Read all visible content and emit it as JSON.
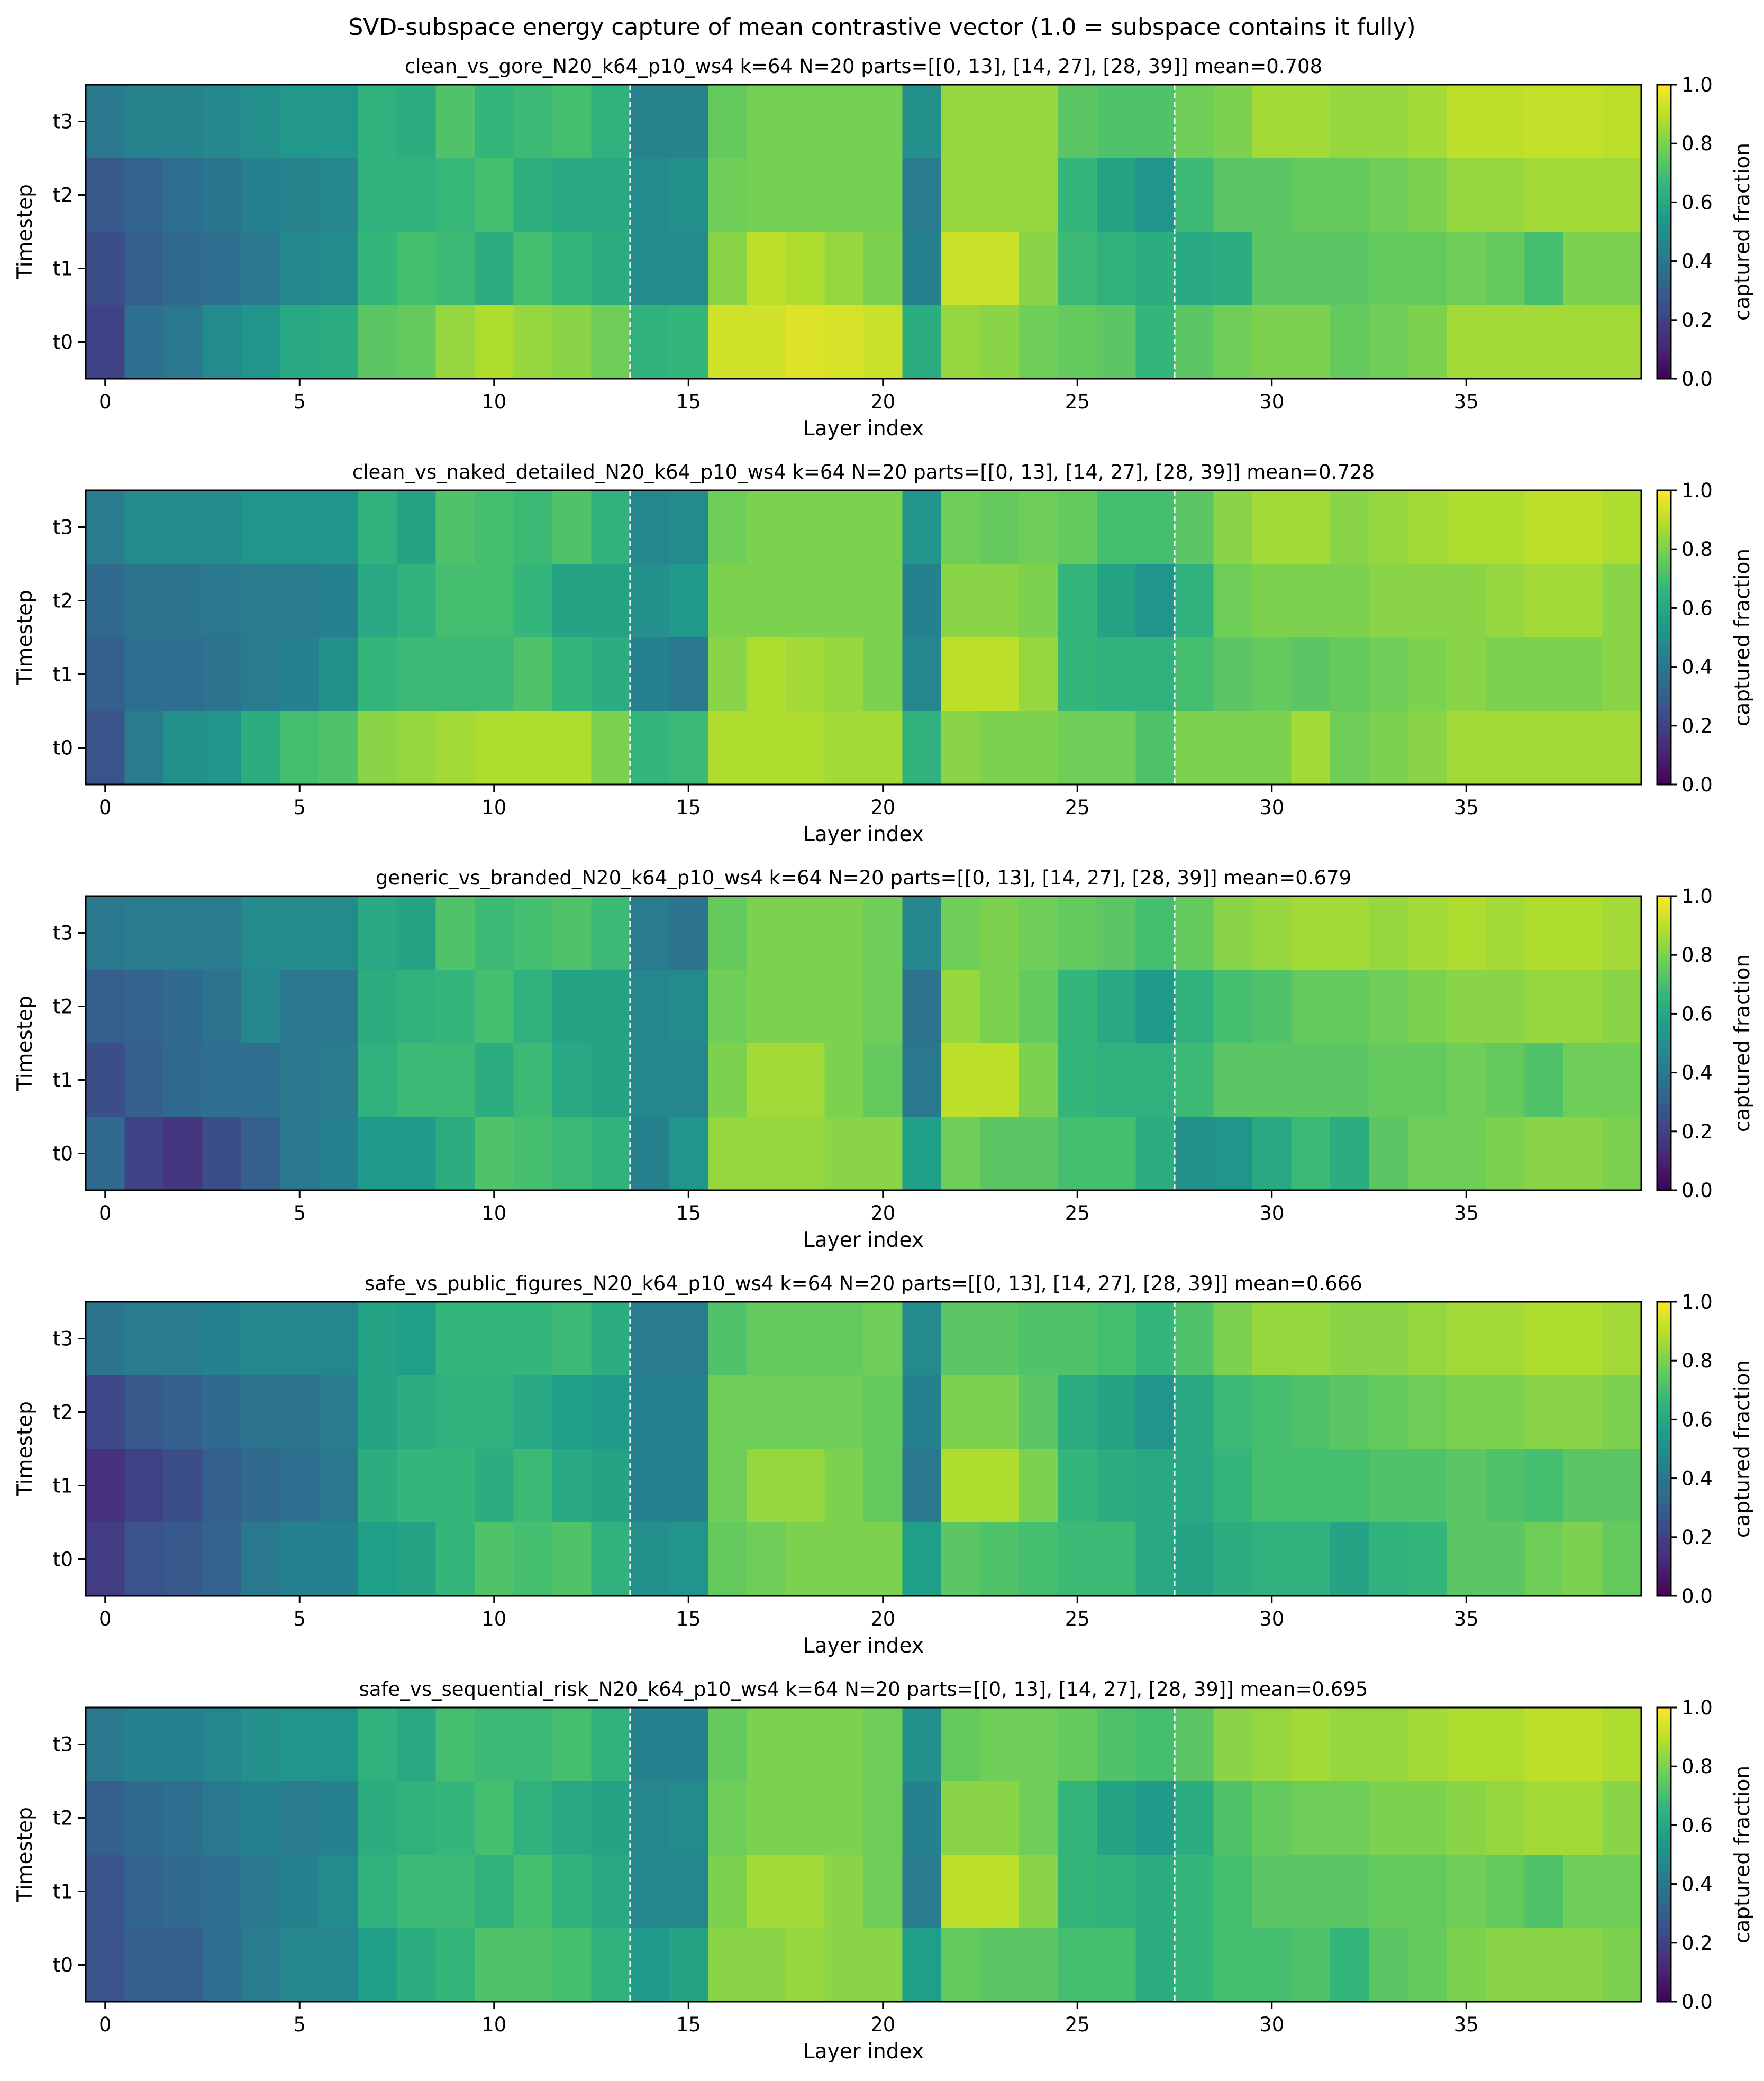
{
  "figure": {
    "suptitle": "SVD-subspace energy capture of mean contrastive vector  (1.0 = subspace contains it fully)"
  },
  "shared_axes": {
    "xlabel": "Layer index",
    "ylabel": "Timestep",
    "x_ticks": [
      0,
      5,
      10,
      15,
      20,
      25,
      30,
      35
    ],
    "y_labels_top_to_bottom": [
      "t3",
      "t2",
      "t1",
      "t0"
    ],
    "colorbar_label": "captured fraction",
    "colorbar_ticks": [
      "0.0",
      "0.2",
      "0.4",
      "0.6",
      "0.8",
      "1.0"
    ],
    "colormap": "viridis",
    "divider_after_layers": [
      13.5,
      27.5
    ],
    "divider_color": "#ffffff"
  },
  "chart_data": [
    {
      "type": "heatmap",
      "title": "clean_vs_gore_N20_k64_p10_ws4   k=64  N=20  parts=[[0, 13], [14, 27], [28, 39]]  mean=0.708",
      "xlabel": "Layer index",
      "ylabel": "Timestep",
      "x": [
        0,
        1,
        2,
        3,
        4,
        5,
        6,
        7,
        8,
        9,
        10,
        11,
        12,
        13,
        14,
        15,
        16,
        17,
        18,
        19,
        20,
        21,
        22,
        23,
        24,
        25,
        26,
        27,
        28,
        29,
        30,
        31,
        32,
        33,
        34,
        35,
        36,
        37,
        38,
        39
      ],
      "y": [
        "t3",
        "t2",
        "t1",
        "t0"
      ],
      "zlim": [
        0,
        1
      ],
      "values": [
        [
          0.4,
          0.45,
          0.45,
          0.47,
          0.5,
          0.53,
          0.53,
          0.64,
          0.62,
          0.72,
          0.66,
          0.68,
          0.7,
          0.64,
          0.45,
          0.45,
          0.76,
          0.79,
          0.79,
          0.79,
          0.79,
          0.5,
          0.84,
          0.84,
          0.84,
          0.74,
          0.72,
          0.72,
          0.78,
          0.8,
          0.86,
          0.86,
          0.84,
          0.84,
          0.86,
          0.9,
          0.9,
          0.91,
          0.91,
          0.9
        ],
        [
          0.28,
          0.32,
          0.36,
          0.39,
          0.44,
          0.45,
          0.46,
          0.64,
          0.64,
          0.67,
          0.7,
          0.63,
          0.6,
          0.6,
          0.48,
          0.5,
          0.78,
          0.79,
          0.79,
          0.79,
          0.79,
          0.42,
          0.84,
          0.84,
          0.84,
          0.66,
          0.58,
          0.52,
          0.68,
          0.74,
          0.74,
          0.76,
          0.76,
          0.78,
          0.8,
          0.84,
          0.84,
          0.86,
          0.86,
          0.86
        ],
        [
          0.24,
          0.3,
          0.34,
          0.36,
          0.4,
          0.47,
          0.48,
          0.66,
          0.7,
          0.68,
          0.62,
          0.7,
          0.66,
          0.62,
          0.48,
          0.48,
          0.82,
          0.9,
          0.88,
          0.84,
          0.8,
          0.44,
          0.92,
          0.92,
          0.82,
          0.68,
          0.64,
          0.62,
          0.6,
          0.62,
          0.74,
          0.74,
          0.74,
          0.76,
          0.76,
          0.78,
          0.76,
          0.7,
          0.8,
          0.8
        ],
        [
          0.2,
          0.36,
          0.4,
          0.48,
          0.52,
          0.6,
          0.62,
          0.74,
          0.76,
          0.84,
          0.88,
          0.84,
          0.82,
          0.78,
          0.64,
          0.66,
          0.93,
          0.93,
          0.95,
          0.94,
          0.92,
          0.62,
          0.84,
          0.82,
          0.78,
          0.76,
          0.74,
          0.66,
          0.74,
          0.78,
          0.8,
          0.8,
          0.76,
          0.78,
          0.8,
          0.86,
          0.86,
          0.86,
          0.86,
          0.86
        ]
      ]
    },
    {
      "type": "heatmap",
      "title": "clean_vs_naked_detailed_N20_k64_p10_ws4   k=64  N=20  parts=[[0, 13], [14, 27], [28, 39]]  mean=0.728",
      "xlabel": "Layer index",
      "ylabel": "Timestep",
      "x": [
        0,
        1,
        2,
        3,
        4,
        5,
        6,
        7,
        8,
        9,
        10,
        11,
        12,
        13,
        14,
        15,
        16,
        17,
        18,
        19,
        20,
        21,
        22,
        23,
        24,
        25,
        26,
        27,
        28,
        29,
        30,
        31,
        32,
        33,
        34,
        35,
        36,
        37,
        38,
        39
      ],
      "y": [
        "t3",
        "t2",
        "t1",
        "t0"
      ],
      "zlim": [
        0,
        1
      ],
      "values": [
        [
          0.42,
          0.48,
          0.48,
          0.48,
          0.52,
          0.52,
          0.52,
          0.64,
          0.58,
          0.72,
          0.7,
          0.68,
          0.72,
          0.64,
          0.46,
          0.48,
          0.78,
          0.8,
          0.8,
          0.8,
          0.8,
          0.52,
          0.78,
          0.76,
          0.78,
          0.76,
          0.7,
          0.7,
          0.74,
          0.82,
          0.86,
          0.86,
          0.82,
          0.84,
          0.86,
          0.88,
          0.88,
          0.9,
          0.9,
          0.88
        ],
        [
          0.34,
          0.38,
          0.38,
          0.4,
          0.42,
          0.42,
          0.44,
          0.6,
          0.64,
          0.7,
          0.7,
          0.66,
          0.58,
          0.58,
          0.5,
          0.54,
          0.8,
          0.8,
          0.8,
          0.8,
          0.8,
          0.44,
          0.82,
          0.82,
          0.8,
          0.66,
          0.58,
          0.52,
          0.64,
          0.78,
          0.8,
          0.8,
          0.8,
          0.82,
          0.82,
          0.82,
          0.84,
          0.86,
          0.86,
          0.82
        ],
        [
          0.3,
          0.36,
          0.36,
          0.38,
          0.42,
          0.44,
          0.5,
          0.66,
          0.68,
          0.68,
          0.68,
          0.72,
          0.66,
          0.62,
          0.44,
          0.4,
          0.82,
          0.88,
          0.86,
          0.84,
          0.8,
          0.46,
          0.9,
          0.9,
          0.84,
          0.66,
          0.64,
          0.64,
          0.7,
          0.74,
          0.76,
          0.74,
          0.76,
          0.78,
          0.8,
          0.82,
          0.8,
          0.8,
          0.8,
          0.82
        ],
        [
          0.26,
          0.42,
          0.5,
          0.52,
          0.62,
          0.7,
          0.72,
          0.82,
          0.84,
          0.86,
          0.88,
          0.88,
          0.88,
          0.8,
          0.66,
          0.68,
          0.88,
          0.88,
          0.88,
          0.86,
          0.86,
          0.64,
          0.82,
          0.8,
          0.8,
          0.78,
          0.78,
          0.72,
          0.8,
          0.8,
          0.8,
          0.86,
          0.78,
          0.8,
          0.82,
          0.86,
          0.86,
          0.86,
          0.86,
          0.86
        ]
      ]
    },
    {
      "type": "heatmap",
      "title": "generic_vs_branded_N20_k64_p10_ws4   k=64  N=20  parts=[[0, 13], [14, 27], [28, 39]]  mean=0.679",
      "xlabel": "Layer index",
      "ylabel": "Timestep",
      "x": [
        0,
        1,
        2,
        3,
        4,
        5,
        6,
        7,
        8,
        9,
        10,
        11,
        12,
        13,
        14,
        15,
        16,
        17,
        18,
        19,
        20,
        21,
        22,
        23,
        24,
        25,
        26,
        27,
        28,
        29,
        30,
        31,
        32,
        33,
        34,
        35,
        36,
        37,
        38,
        39
      ],
      "y": [
        "t3",
        "t2",
        "t1",
        "t0"
      ],
      "zlim": [
        0,
        1
      ],
      "values": [
        [
          0.4,
          0.42,
          0.42,
          0.42,
          0.48,
          0.48,
          0.48,
          0.6,
          0.58,
          0.72,
          0.68,
          0.7,
          0.72,
          0.68,
          0.42,
          0.38,
          0.76,
          0.8,
          0.8,
          0.8,
          0.78,
          0.46,
          0.78,
          0.8,
          0.78,
          0.76,
          0.74,
          0.7,
          0.76,
          0.82,
          0.84,
          0.86,
          0.86,
          0.84,
          0.86,
          0.88,
          0.86,
          0.88,
          0.88,
          0.86
        ],
        [
          0.3,
          0.32,
          0.34,
          0.38,
          0.46,
          0.4,
          0.4,
          0.62,
          0.64,
          0.66,
          0.7,
          0.64,
          0.58,
          0.58,
          0.46,
          0.48,
          0.78,
          0.8,
          0.8,
          0.8,
          0.78,
          0.38,
          0.84,
          0.8,
          0.76,
          0.66,
          0.6,
          0.54,
          0.64,
          0.7,
          0.72,
          0.76,
          0.76,
          0.78,
          0.8,
          0.82,
          0.82,
          0.84,
          0.84,
          0.82
        ],
        [
          0.24,
          0.3,
          0.34,
          0.36,
          0.36,
          0.4,
          0.42,
          0.64,
          0.68,
          0.68,
          0.62,
          0.68,
          0.6,
          0.58,
          0.46,
          0.46,
          0.8,
          0.86,
          0.86,
          0.8,
          0.76,
          0.4,
          0.9,
          0.9,
          0.8,
          0.66,
          0.64,
          0.64,
          0.68,
          0.74,
          0.74,
          0.74,
          0.74,
          0.76,
          0.76,
          0.78,
          0.76,
          0.72,
          0.78,
          0.78
        ],
        [
          0.34,
          0.2,
          0.16,
          0.24,
          0.3,
          0.4,
          0.44,
          0.54,
          0.54,
          0.62,
          0.72,
          0.7,
          0.68,
          0.64,
          0.44,
          0.52,
          0.84,
          0.84,
          0.84,
          0.82,
          0.82,
          0.56,
          0.78,
          0.74,
          0.74,
          0.7,
          0.7,
          0.62,
          0.5,
          0.52,
          0.6,
          0.68,
          0.62,
          0.74,
          0.78,
          0.78,
          0.8,
          0.82,
          0.82,
          0.8
        ]
      ]
    },
    {
      "type": "heatmap",
      "title": "safe_vs_public_figures_N20_k64_p10_ws4   k=64  N=20  parts=[[0, 13], [14, 27], [28, 39]]  mean=0.666",
      "xlabel": "Layer index",
      "ylabel": "Timestep",
      "x": [
        0,
        1,
        2,
        3,
        4,
        5,
        6,
        7,
        8,
        9,
        10,
        11,
        12,
        13,
        14,
        15,
        16,
        17,
        18,
        19,
        20,
        21,
        22,
        23,
        24,
        25,
        26,
        27,
        28,
        29,
        30,
        31,
        32,
        33,
        34,
        35,
        36,
        37,
        38,
        39
      ],
      "y": [
        "t3",
        "t2",
        "t1",
        "t0"
      ],
      "zlim": [
        0,
        1
      ],
      "values": [
        [
          0.38,
          0.42,
          0.42,
          0.44,
          0.46,
          0.46,
          0.46,
          0.58,
          0.56,
          0.66,
          0.66,
          0.66,
          0.68,
          0.62,
          0.42,
          0.42,
          0.72,
          0.76,
          0.76,
          0.76,
          0.78,
          0.48,
          0.74,
          0.74,
          0.72,
          0.72,
          0.7,
          0.66,
          0.72,
          0.8,
          0.84,
          0.84,
          0.82,
          0.82,
          0.84,
          0.86,
          0.86,
          0.88,
          0.88,
          0.86
        ],
        [
          0.22,
          0.28,
          0.3,
          0.34,
          0.38,
          0.38,
          0.42,
          0.58,
          0.62,
          0.64,
          0.64,
          0.6,
          0.56,
          0.54,
          0.44,
          0.44,
          0.78,
          0.78,
          0.78,
          0.78,
          0.76,
          0.44,
          0.8,
          0.8,
          0.74,
          0.62,
          0.58,
          0.52,
          0.6,
          0.68,
          0.7,
          0.72,
          0.74,
          0.76,
          0.78,
          0.8,
          0.8,
          0.82,
          0.82,
          0.8
        ],
        [
          0.14,
          0.2,
          0.24,
          0.3,
          0.34,
          0.36,
          0.4,
          0.62,
          0.66,
          0.66,
          0.62,
          0.68,
          0.6,
          0.58,
          0.44,
          0.44,
          0.78,
          0.84,
          0.84,
          0.8,
          0.76,
          0.4,
          0.88,
          0.88,
          0.8,
          0.66,
          0.62,
          0.6,
          0.6,
          0.66,
          0.7,
          0.7,
          0.7,
          0.72,
          0.72,
          0.74,
          0.72,
          0.7,
          0.74,
          0.74
        ],
        [
          0.18,
          0.26,
          0.28,
          0.32,
          0.4,
          0.44,
          0.44,
          0.56,
          0.58,
          0.66,
          0.72,
          0.7,
          0.72,
          0.64,
          0.5,
          0.52,
          0.76,
          0.78,
          0.8,
          0.8,
          0.8,
          0.56,
          0.74,
          0.72,
          0.7,
          0.68,
          0.68,
          0.6,
          0.58,
          0.62,
          0.64,
          0.64,
          0.58,
          0.64,
          0.66,
          0.74,
          0.74,
          0.78,
          0.8,
          0.76
        ]
      ]
    },
    {
      "type": "heatmap",
      "title": "safe_vs_sequential_risk_N20_k64_p10_ws4   k=64  N=20  parts=[[0, 13], [14, 27], [28, 39]]  mean=0.695",
      "xlabel": "Layer index",
      "ylabel": "Timestep",
      "x": [
        0,
        1,
        2,
        3,
        4,
        5,
        6,
        7,
        8,
        9,
        10,
        11,
        12,
        13,
        14,
        15,
        16,
        17,
        18,
        19,
        20,
        21,
        22,
        23,
        24,
        25,
        26,
        27,
        28,
        29,
        30,
        31,
        32,
        33,
        34,
        35,
        36,
        37,
        38,
        39
      ],
      "y": [
        "t3",
        "t2",
        "t1",
        "t0"
      ],
      "zlim": [
        0,
        1
      ],
      "values": [
        [
          0.4,
          0.44,
          0.44,
          0.46,
          0.5,
          0.52,
          0.52,
          0.64,
          0.6,
          0.7,
          0.68,
          0.68,
          0.7,
          0.64,
          0.44,
          0.44,
          0.76,
          0.8,
          0.8,
          0.8,
          0.78,
          0.5,
          0.76,
          0.78,
          0.78,
          0.76,
          0.72,
          0.7,
          0.74,
          0.82,
          0.84,
          0.86,
          0.84,
          0.84,
          0.86,
          0.88,
          0.88,
          0.9,
          0.9,
          0.88
        ],
        [
          0.3,
          0.34,
          0.36,
          0.4,
          0.44,
          0.42,
          0.44,
          0.62,
          0.64,
          0.66,
          0.7,
          0.64,
          0.6,
          0.58,
          0.46,
          0.48,
          0.78,
          0.8,
          0.8,
          0.8,
          0.78,
          0.44,
          0.82,
          0.82,
          0.78,
          0.66,
          0.58,
          0.54,
          0.62,
          0.72,
          0.76,
          0.78,
          0.78,
          0.8,
          0.8,
          0.82,
          0.84,
          0.86,
          0.86,
          0.82
        ],
        [
          0.26,
          0.32,
          0.34,
          0.36,
          0.4,
          0.44,
          0.48,
          0.64,
          0.68,
          0.68,
          0.64,
          0.7,
          0.64,
          0.6,
          0.46,
          0.46,
          0.8,
          0.86,
          0.86,
          0.82,
          0.78,
          0.42,
          0.9,
          0.9,
          0.82,
          0.66,
          0.64,
          0.62,
          0.66,
          0.7,
          0.74,
          0.74,
          0.74,
          0.76,
          0.76,
          0.78,
          0.76,
          0.72,
          0.78,
          0.78
        ],
        [
          0.26,
          0.3,
          0.3,
          0.36,
          0.42,
          0.46,
          0.46,
          0.56,
          0.62,
          0.66,
          0.72,
          0.72,
          0.7,
          0.64,
          0.54,
          0.58,
          0.82,
          0.82,
          0.84,
          0.82,
          0.82,
          0.56,
          0.76,
          0.74,
          0.74,
          0.7,
          0.7,
          0.62,
          0.66,
          0.7,
          0.7,
          0.72,
          0.66,
          0.74,
          0.76,
          0.8,
          0.82,
          0.82,
          0.82,
          0.8
        ]
      ]
    }
  ]
}
